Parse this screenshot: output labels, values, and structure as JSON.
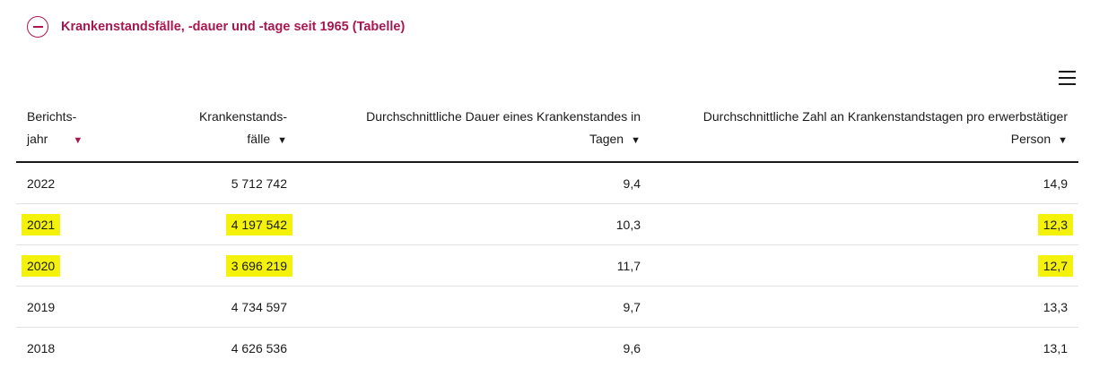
{
  "accordion": {
    "title": "Krankenstandsfälle, -dauer und -tage seit 1965 (Tabelle)",
    "icon": "minus-circle-icon"
  },
  "menu": {
    "icon": "hamburger-menu-icon"
  },
  "table": {
    "columns": [
      {
        "line1": "Berichts-",
        "line2": "jahr",
        "sort": "desc-active"
      },
      {
        "line1": "Krankenstands-",
        "line2": "fälle",
        "sort": "none"
      },
      {
        "line1": "Durchschnittliche Dauer eines Krankenstandes in",
        "line2": "Tagen",
        "sort": "none"
      },
      {
        "line1": "Durchschnittliche Zahl an Krankenstandstagen pro erwerbstätiger",
        "line2": "Person",
        "sort": "none"
      }
    ],
    "rows": [
      {
        "year": "2022",
        "cases": "5 712 742",
        "duration": "9,4",
        "days": "14,9"
      },
      {
        "year": "2021",
        "cases": "4 197 542",
        "duration": "10,3",
        "days": "12,3"
      },
      {
        "year": "2020",
        "cases": "3 696 219",
        "duration": "11,7",
        "days": "12,7"
      },
      {
        "year": "2019",
        "cases": "4 734 597",
        "duration": "9,7",
        "days": "13,3"
      },
      {
        "year": "2018",
        "cases": "4 626 536",
        "duration": "9,6",
        "days": "13,1"
      }
    ]
  },
  "colors": {
    "accent": "#a8174f",
    "highlight": "#f4f20a"
  }
}
